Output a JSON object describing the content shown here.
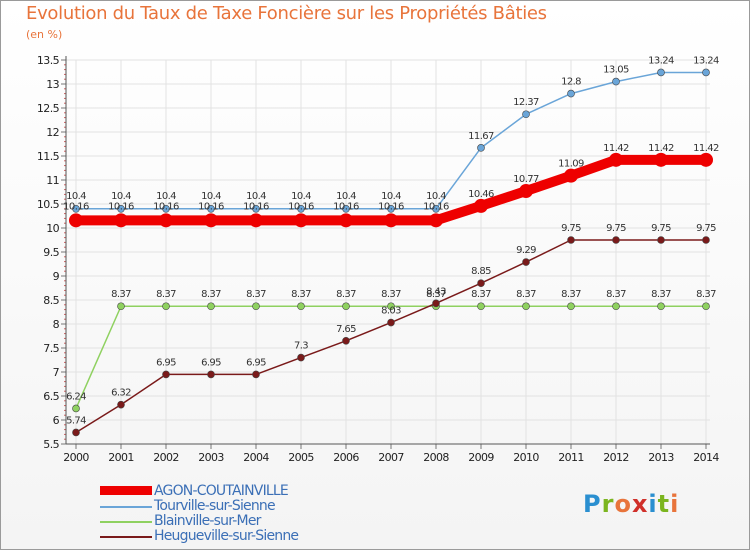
{
  "title": "Evolution du Taux de Taxe Foncière sur les Propriétés Bâties",
  "subtitle": "(en %)",
  "logo": {
    "letters": [
      "P",
      "r",
      "o",
      "x",
      "i",
      "t",
      "i"
    ],
    "colors": [
      "#2a8fd0",
      "#7bb51f",
      "#e8743b",
      "#d0302a",
      "#2a8fd0",
      "#7bb51f",
      "#e8743b"
    ]
  },
  "chart_data": {
    "type": "line",
    "x": [
      "2000",
      "2001",
      "2002",
      "2003",
      "2004",
      "2005",
      "2006",
      "2007",
      "2008",
      "2009",
      "2010",
      "2011",
      "2012",
      "2013",
      "2014"
    ],
    "ylim": [
      5.5,
      13.5
    ],
    "yticks": [
      "5.5",
      "6",
      "6.5",
      "7",
      "7.5",
      "8",
      "8.5",
      "9",
      "9.5",
      "10",
      "10.5",
      "11",
      "11.5",
      "12",
      "12.5",
      "13",
      "13.5"
    ],
    "grid": true,
    "series": [
      {
        "name": "AGON-COUTAINVILLE",
        "color": "#ee0000",
        "width": 10,
        "marker": 7,
        "values": [
          10.16,
          10.16,
          10.16,
          10.16,
          10.16,
          10.16,
          10.16,
          10.16,
          10.16,
          10.46,
          10.77,
          11.09,
          11.42,
          11.42,
          11.42
        ],
        "labels": [
          "10.16",
          "10.16",
          "10.16",
          "10.16",
          "10.16",
          "10.16",
          "10.16",
          "10.16",
          "10.16",
          "10.46",
          "10.77",
          "11.09",
          "11.42",
          "11.42",
          "11.42"
        ]
      },
      {
        "name": "Tourville-sur-Sienne",
        "color": "#6aa5d8",
        "width": 1.5,
        "marker": 3.5,
        "values": [
          10.4,
          10.4,
          10.4,
          10.4,
          10.4,
          10.4,
          10.4,
          10.4,
          10.4,
          11.67,
          12.37,
          12.8,
          13.05,
          13.24,
          13.24
        ],
        "labels": [
          "10.4",
          "10.4",
          "10.4",
          "10.4",
          "10.4",
          "10.4",
          "10.4",
          "10.4",
          "10.4",
          "11.67",
          "12.37",
          "12.8",
          "13.05",
          "13.24",
          "13.24"
        ]
      },
      {
        "name": "Blainville-sur-Mer",
        "color": "#8fd160",
        "width": 1.5,
        "marker": 3.5,
        "values": [
          6.24,
          8.37,
          8.37,
          8.37,
          8.37,
          8.37,
          8.37,
          8.37,
          8.37,
          8.37,
          8.37,
          8.37,
          8.37,
          8.37,
          8.37
        ],
        "labels": [
          "6.24",
          "8.37",
          "8.37",
          "8.37",
          "8.37",
          "8.37",
          "8.37",
          "8.37",
          "8.37",
          "8.37",
          "8.37",
          "8.37",
          "8.37",
          "8.37",
          "8.37"
        ]
      },
      {
        "name": "Heugueville-sur-Sienne",
        "color": "#7a1a1a",
        "width": 1.5,
        "marker": 3.5,
        "values": [
          5.74,
          6.32,
          6.95,
          6.95,
          6.95,
          7.3,
          7.65,
          8.03,
          8.43,
          8.85,
          9.29,
          9.75,
          9.75,
          9.75,
          9.75
        ],
        "labels": [
          "5.74",
          "6.32",
          "6.95",
          "6.95",
          "6.95",
          "7.3",
          "7.65",
          "8.03",
          "8.43",
          "8.85",
          "9.29",
          "9.75",
          "9.75",
          "9.75",
          "9.75"
        ]
      }
    ]
  }
}
